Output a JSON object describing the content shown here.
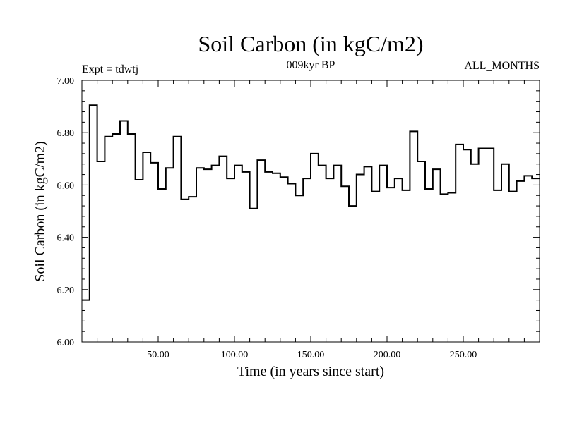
{
  "chart_data": {
    "type": "line",
    "style": "step",
    "title": "Soil Carbon (in kgC/m2)",
    "subtitle": "009kyr BP",
    "experiment_label": "Expt = tdwtj",
    "period_label": "ALL_MONTHS",
    "xlabel": "Time (in years since start)",
    "ylabel": "Soil Carbon (in kgC/m2)",
    "xlim": [
      0,
      300
    ],
    "ylim": [
      6.0,
      7.0
    ],
    "x_ticks": [
      50,
      100,
      150,
      200,
      250
    ],
    "x_tick_labels": [
      "50.00",
      "100.00",
      "150.00",
      "200.00",
      "250.00"
    ],
    "y_ticks": [
      6.0,
      6.2,
      6.4,
      6.6,
      6.8,
      7.0
    ],
    "y_tick_labels": [
      "6.00",
      "6.20",
      "6.40",
      "6.60",
      "6.80",
      "7.00"
    ],
    "line_color": "#000000",
    "series": [
      {
        "name": "Soil Carbon",
        "x": [
          0,
          5,
          10,
          15,
          20,
          25,
          30,
          35,
          40,
          45,
          50,
          55,
          60,
          65,
          70,
          75,
          80,
          85,
          90,
          95,
          100,
          105,
          110,
          115,
          120,
          125,
          130,
          135,
          140,
          145,
          150,
          155,
          160,
          165,
          170,
          175,
          180,
          185,
          190,
          195,
          200,
          205,
          210,
          215,
          220,
          225,
          230,
          235,
          240,
          245,
          250,
          255,
          260,
          265,
          270,
          275,
          280,
          285,
          290,
          295
        ],
        "values": [
          6.16,
          6.905,
          6.69,
          6.785,
          6.795,
          6.845,
          6.795,
          6.62,
          6.725,
          6.685,
          6.585,
          6.665,
          6.785,
          6.545,
          6.555,
          6.665,
          6.66,
          6.675,
          6.71,
          6.625,
          6.675,
          6.65,
          6.51,
          6.695,
          6.65,
          6.645,
          6.63,
          6.605,
          6.56,
          6.625,
          6.72,
          6.675,
          6.625,
          6.675,
          6.595,
          6.52,
          6.64,
          6.67,
          6.575,
          6.675,
          6.59,
          6.625,
          6.58,
          6.805,
          6.69,
          6.585,
          6.66,
          6.565,
          6.57,
          6.755,
          6.735,
          6.68,
          6.74,
          6.74,
          6.58,
          6.68,
          6.575,
          6.615,
          6.635,
          6.625
        ]
      }
    ]
  }
}
